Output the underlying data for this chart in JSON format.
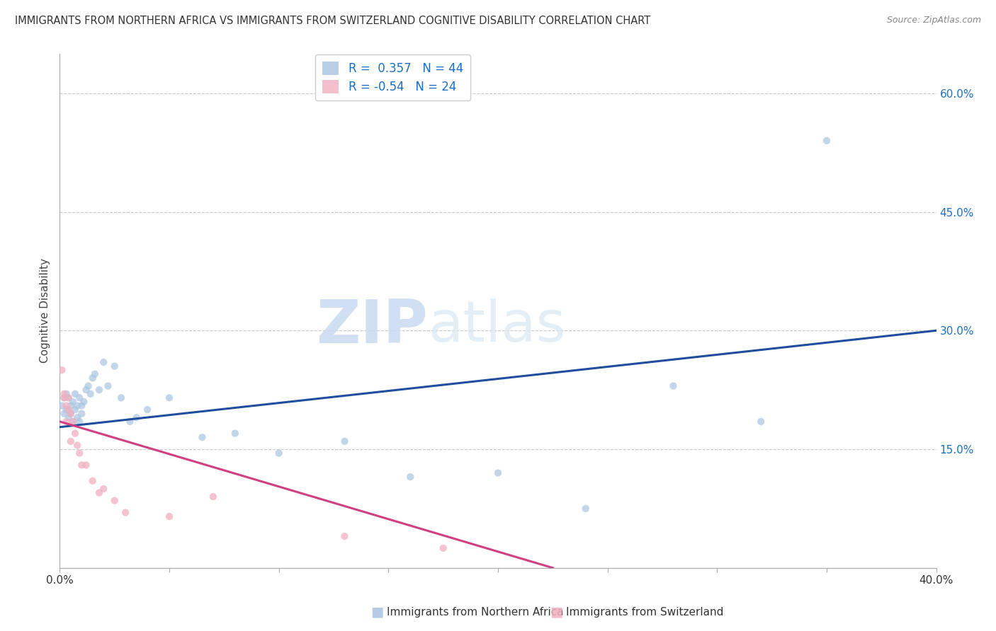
{
  "title": "IMMIGRANTS FROM NORTHERN AFRICA VS IMMIGRANTS FROM SWITZERLAND COGNITIVE DISABILITY CORRELATION CHART",
  "source": "Source: ZipAtlas.com",
  "xlabel_blue": "Immigrants from Northern Africa",
  "xlabel_pink": "Immigrants from Switzerland",
  "ylabel": "Cognitive Disability",
  "xlim": [
    0,
    0.4
  ],
  "ylim": [
    0,
    0.65
  ],
  "xticks": [
    0.0,
    0.05,
    0.1,
    0.15,
    0.2,
    0.25,
    0.3,
    0.35,
    0.4
  ],
  "yticks": [
    0.0,
    0.15,
    0.3,
    0.45,
    0.6
  ],
  "blue_R": 0.357,
  "blue_N": 44,
  "pink_R": -0.54,
  "pink_N": 24,
  "blue_color": "#a8c4e0",
  "pink_color": "#f0b0c0",
  "blue_line_color": "#1f4e9e",
  "pink_line_color": "#d04080",
  "watermark_zip": "ZIP",
  "watermark_atlas": "atlas",
  "blue_scatter_x": [
    0.001,
    0.002,
    0.002,
    0.003,
    0.003,
    0.004,
    0.004,
    0.005,
    0.005,
    0.006,
    0.006,
    0.007,
    0.007,
    0.008,
    0.008,
    0.009,
    0.009,
    0.01,
    0.01,
    0.011,
    0.012,
    0.013,
    0.014,
    0.015,
    0.016,
    0.018,
    0.02,
    0.022,
    0.025,
    0.028,
    0.032,
    0.035,
    0.04,
    0.05,
    0.065,
    0.08,
    0.1,
    0.13,
    0.16,
    0.2,
    0.24,
    0.28,
    0.32,
    0.35
  ],
  "blue_scatter_y": [
    0.205,
    0.215,
    0.195,
    0.22,
    0.2,
    0.19,
    0.215,
    0.205,
    0.195,
    0.21,
    0.185,
    0.22,
    0.2,
    0.205,
    0.19,
    0.215,
    0.185,
    0.205,
    0.195,
    0.21,
    0.225,
    0.23,
    0.22,
    0.24,
    0.245,
    0.225,
    0.26,
    0.23,
    0.255,
    0.215,
    0.185,
    0.19,
    0.2,
    0.215,
    0.165,
    0.17,
    0.145,
    0.16,
    0.115,
    0.12,
    0.075,
    0.23,
    0.185,
    0.54
  ],
  "pink_scatter_x": [
    0.001,
    0.002,
    0.002,
    0.003,
    0.003,
    0.004,
    0.004,
    0.005,
    0.005,
    0.006,
    0.007,
    0.008,
    0.009,
    0.01,
    0.012,
    0.015,
    0.018,
    0.02,
    0.025,
    0.03,
    0.05,
    0.07,
    0.13,
    0.175
  ],
  "pink_scatter_y": [
    0.25,
    0.22,
    0.215,
    0.205,
    0.185,
    0.2,
    0.215,
    0.195,
    0.16,
    0.185,
    0.17,
    0.155,
    0.145,
    0.13,
    0.13,
    0.11,
    0.095,
    0.1,
    0.085,
    0.07,
    0.065,
    0.09,
    0.04,
    0.025
  ],
  "blue_line_x": [
    0.0,
    0.4
  ],
  "blue_line_y": [
    0.178,
    0.3
  ],
  "pink_line_x": [
    0.0,
    0.225
  ],
  "pink_line_y": [
    0.185,
    0.0
  ]
}
